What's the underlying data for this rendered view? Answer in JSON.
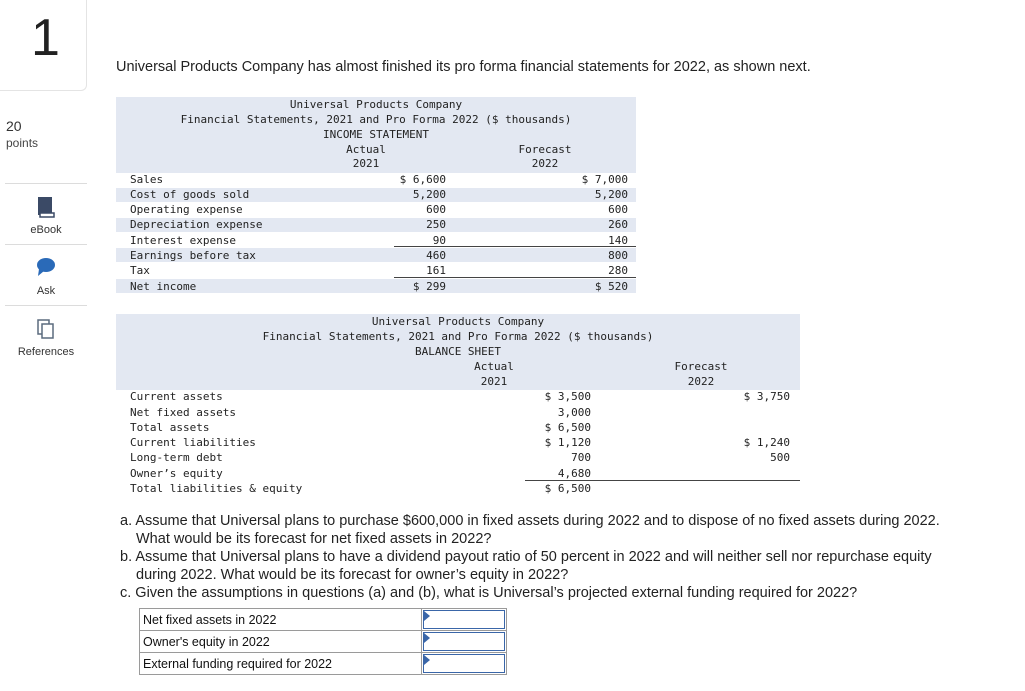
{
  "question": {
    "number": "1",
    "points_value": "20",
    "points_label": "points",
    "prompt": "Universal Products Company has almost finished its pro forma financial statements for 2022, as shown next."
  },
  "sidebar": {
    "tools": [
      {
        "label": "eBook",
        "icon": "book-icon"
      },
      {
        "label": "Ask",
        "icon": "chat-bubble-icon"
      },
      {
        "label": "References",
        "icon": "documents-icon"
      }
    ]
  },
  "income_statement": {
    "title1": "Universal Products Company",
    "title2": "Financial Statements, 2021 and Pro Forma 2022 ($ thousands)",
    "title3": "INCOME STATEMENT",
    "col_actual": "Actual",
    "col_actual_year": "2021",
    "col_forecast": "Forecast",
    "col_forecast_year": "2022",
    "rows": [
      {
        "label": "Sales",
        "actual": "$ 6,600",
        "forecast": "$ 7,000"
      },
      {
        "label": "Cost of goods sold",
        "actual": "5,200",
        "forecast": "5,200"
      },
      {
        "label": "Operating expense",
        "actual": "600",
        "forecast": "600"
      },
      {
        "label": "Depreciation expense",
        "actual": "250",
        "forecast": "260"
      },
      {
        "label": "Interest expense",
        "actual": "90",
        "forecast": "140"
      },
      {
        "label": "Earnings before tax",
        "actual": "460",
        "forecast": "800"
      },
      {
        "label": "Tax",
        "actual": "161",
        "forecast": "280"
      },
      {
        "label": "Net income",
        "actual": "$ 299",
        "forecast": "$ 520"
      }
    ]
  },
  "balance_sheet": {
    "title1": "Universal Products Company",
    "title2": "Financial Statements, 2021 and Pro Forma 2022 ($ thousands)",
    "title3": "BALANCE SHEET",
    "col_actual": "Actual",
    "col_actual_year": "2021",
    "col_forecast": "Forecast",
    "col_forecast_year": "2022",
    "rows": [
      {
        "label": "Current assets",
        "actual": "$ 3,500",
        "forecast": "$ 3,750"
      },
      {
        "label": "Net fixed assets",
        "actual": "3,000",
        "forecast": ""
      },
      {
        "label": "Total assets",
        "actual": "$ 6,500",
        "forecast": ""
      },
      {
        "label": "Current liabilities",
        "actual": "$ 1,120",
        "forecast": "$ 1,240"
      },
      {
        "label": "Long-term debt",
        "actual": "700",
        "forecast": "500"
      },
      {
        "label": "Owner’s equity",
        "actual": "4,680",
        "forecast": ""
      },
      {
        "label": "Total liabilities & equity",
        "actual": "$ 6,500",
        "forecast": ""
      }
    ]
  },
  "parts": {
    "a_line1": "a. Assume that Universal plans to purchase $600,000 in fixed assets during 2022 and to dispose of no fixed assets during 2022.",
    "a_line2": "What would be its forecast for net fixed assets in 2022?",
    "b_line1": "b. Assume that Universal plans to have a dividend payout ratio of 50 percent in 2022 and will neither sell nor repurchase equity",
    "b_line2": "during 2022. What would be its forecast for owner’s equity in 2022?",
    "c_line1": "c. Given the assumptions in questions (a) and (b), what is Universal’s projected external funding required for 2022?"
  },
  "answers": [
    {
      "label": "Net fixed assets in 2022",
      "value": ""
    },
    {
      "label": "Owner's equity in 2022",
      "value": ""
    },
    {
      "label": "External funding required for 2022",
      "value": ""
    }
  ],
  "colors": {
    "panel": "#e3e8f2",
    "input_border": "#3a66a8",
    "ebook_icon": "#3b4a66",
    "ask_icon": "#2a6ab8"
  }
}
